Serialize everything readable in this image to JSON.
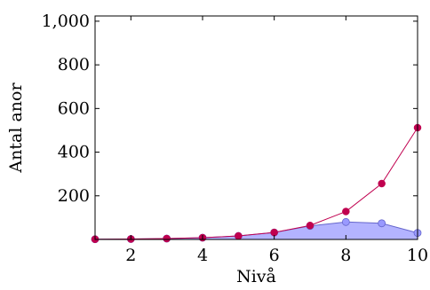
{
  "chart_data": {
    "type": "line",
    "xlabel": "Nivå",
    "ylabel": "Antal anor",
    "xlim": [
      1,
      10
    ],
    "ylim": [
      0,
      1024
    ],
    "x_ticks": [
      2,
      4,
      6,
      8,
      10
    ],
    "x_tick_labels": [
      "2",
      "4",
      "6",
      "8",
      "10"
    ],
    "y_ticks": [
      200,
      400,
      600,
      800,
      1000
    ],
    "y_tick_labels": [
      "200",
      "400",
      "600",
      "800",
      "1,000"
    ],
    "grid": false,
    "series": [
      {
        "style": "filled-area",
        "color": "#9999ff",
        "fill_color": "#b3b3ff",
        "line_color": "#6666cc",
        "x": [
          1,
          2,
          3,
          4,
          5,
          6,
          7,
          8,
          9,
          10
        ],
        "values": [
          1,
          2,
          4,
          8,
          16,
          32,
          62,
          80,
          74,
          30
        ]
      },
      {
        "style": "line-markers",
        "color": "#c0004f",
        "x": [
          1,
          2,
          3,
          4,
          5,
          6,
          7,
          8,
          9,
          10
        ],
        "values": [
          1,
          2,
          4,
          8,
          16,
          32,
          64,
          128,
          256,
          512
        ]
      }
    ]
  }
}
